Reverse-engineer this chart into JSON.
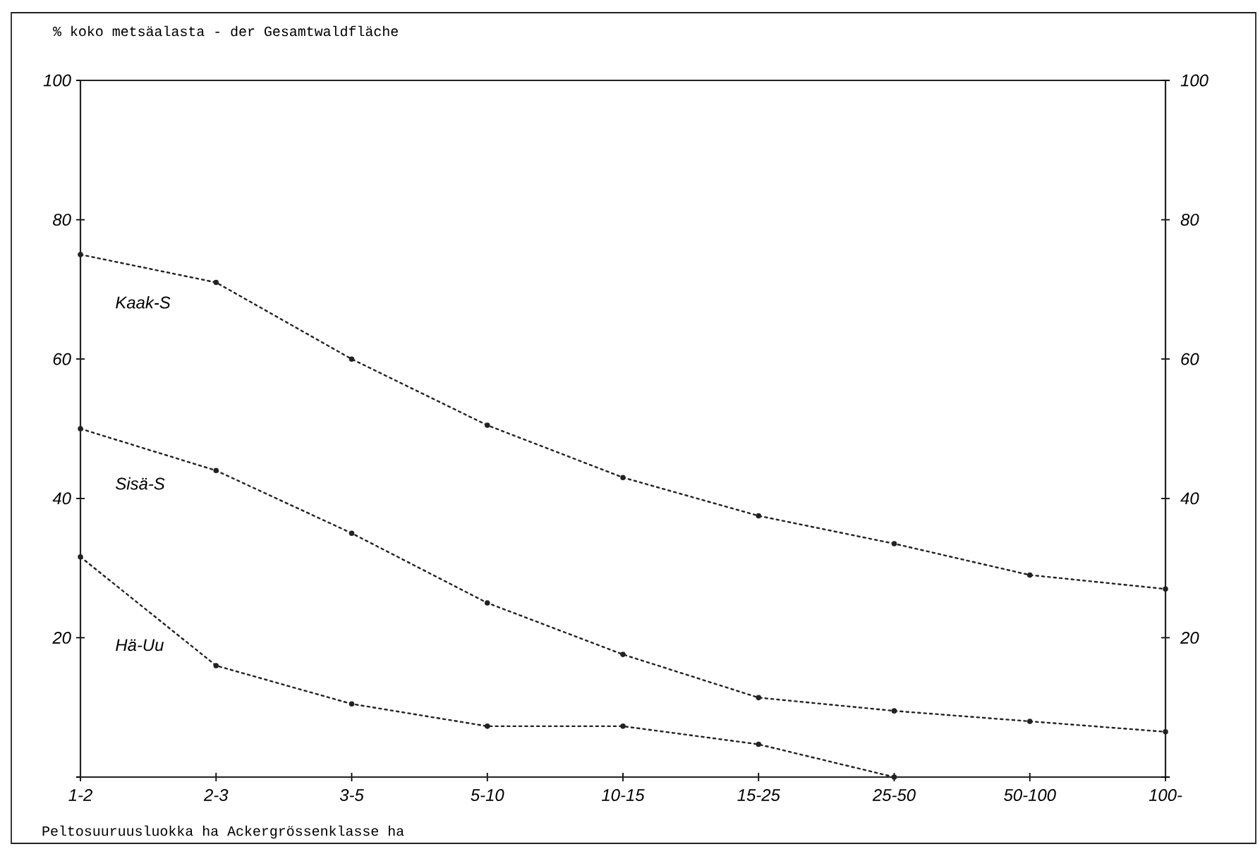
{
  "chart_data": {
    "type": "line",
    "title": "% koko metsäalasta - der Gesamtwaldfläche",
    "xlabel": "Peltosuuruusluokka ha   Ackergrössenklasse ha",
    "categories": [
      "1-2",
      "2-3",
      "3-5",
      "5-10",
      "10-15",
      "15-25",
      "25-50",
      "50-100",
      "100-"
    ],
    "series": [
      {
        "name": "Kaak-S",
        "color": "#222222",
        "values": [
          75,
          71,
          60,
          50.5,
          43,
          37.5,
          33.5,
          29,
          27
        ]
      },
      {
        "name": "Sisä-S",
        "color": "#222222",
        "values": [
          50,
          44,
          35,
          25,
          17.6,
          11.4,
          9.5,
          8,
          6.5
        ]
      },
      {
        "name": "Hä-Uu",
        "color": "#222222",
        "values": [
          31.6,
          16,
          10.5,
          7.3,
          7.3,
          4.7,
          0,
          null,
          null
        ]
      }
    ],
    "ylim": [
      0,
      100
    ],
    "yticks": [
      {
        "value": 0,
        "label": null
      },
      20,
      40,
      60,
      80,
      100
    ],
    "y2lim": [
      0,
      100
    ],
    "y2ticks": [
      {
        "value": 0,
        "label": null
      },
      20,
      40,
      60,
      80,
      100
    ],
    "marker": "circle",
    "line_style": "dotted"
  }
}
